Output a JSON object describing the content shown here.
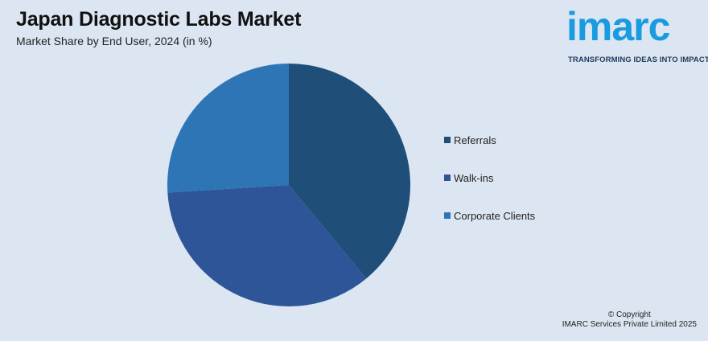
{
  "header": {
    "title": "Japan Diagnostic Labs Market",
    "subtitle": "Market Share by End User, 2024 (in %)"
  },
  "logo": {
    "text": "imarc",
    "tagline": "TRANSFORMING IDEAS INTO IMPACT",
    "color": "#1a9be0"
  },
  "chart_data": {
    "type": "pie",
    "title": "Japan Diagnostic Labs Market",
    "subtitle": "Market Share by End User, 2024 (in %)",
    "categories": [
      "Referrals",
      "Walk-ins",
      "Corporate Clients"
    ],
    "values": [
      39,
      35,
      26
    ],
    "colors": [
      "#1f4e79",
      "#2e5597",
      "#2e75b6"
    ],
    "legend_position": "right"
  },
  "footer": {
    "copyright_line1": "© Copyright",
    "copyright_line2": "IMARC Services Private Limited 2025"
  }
}
